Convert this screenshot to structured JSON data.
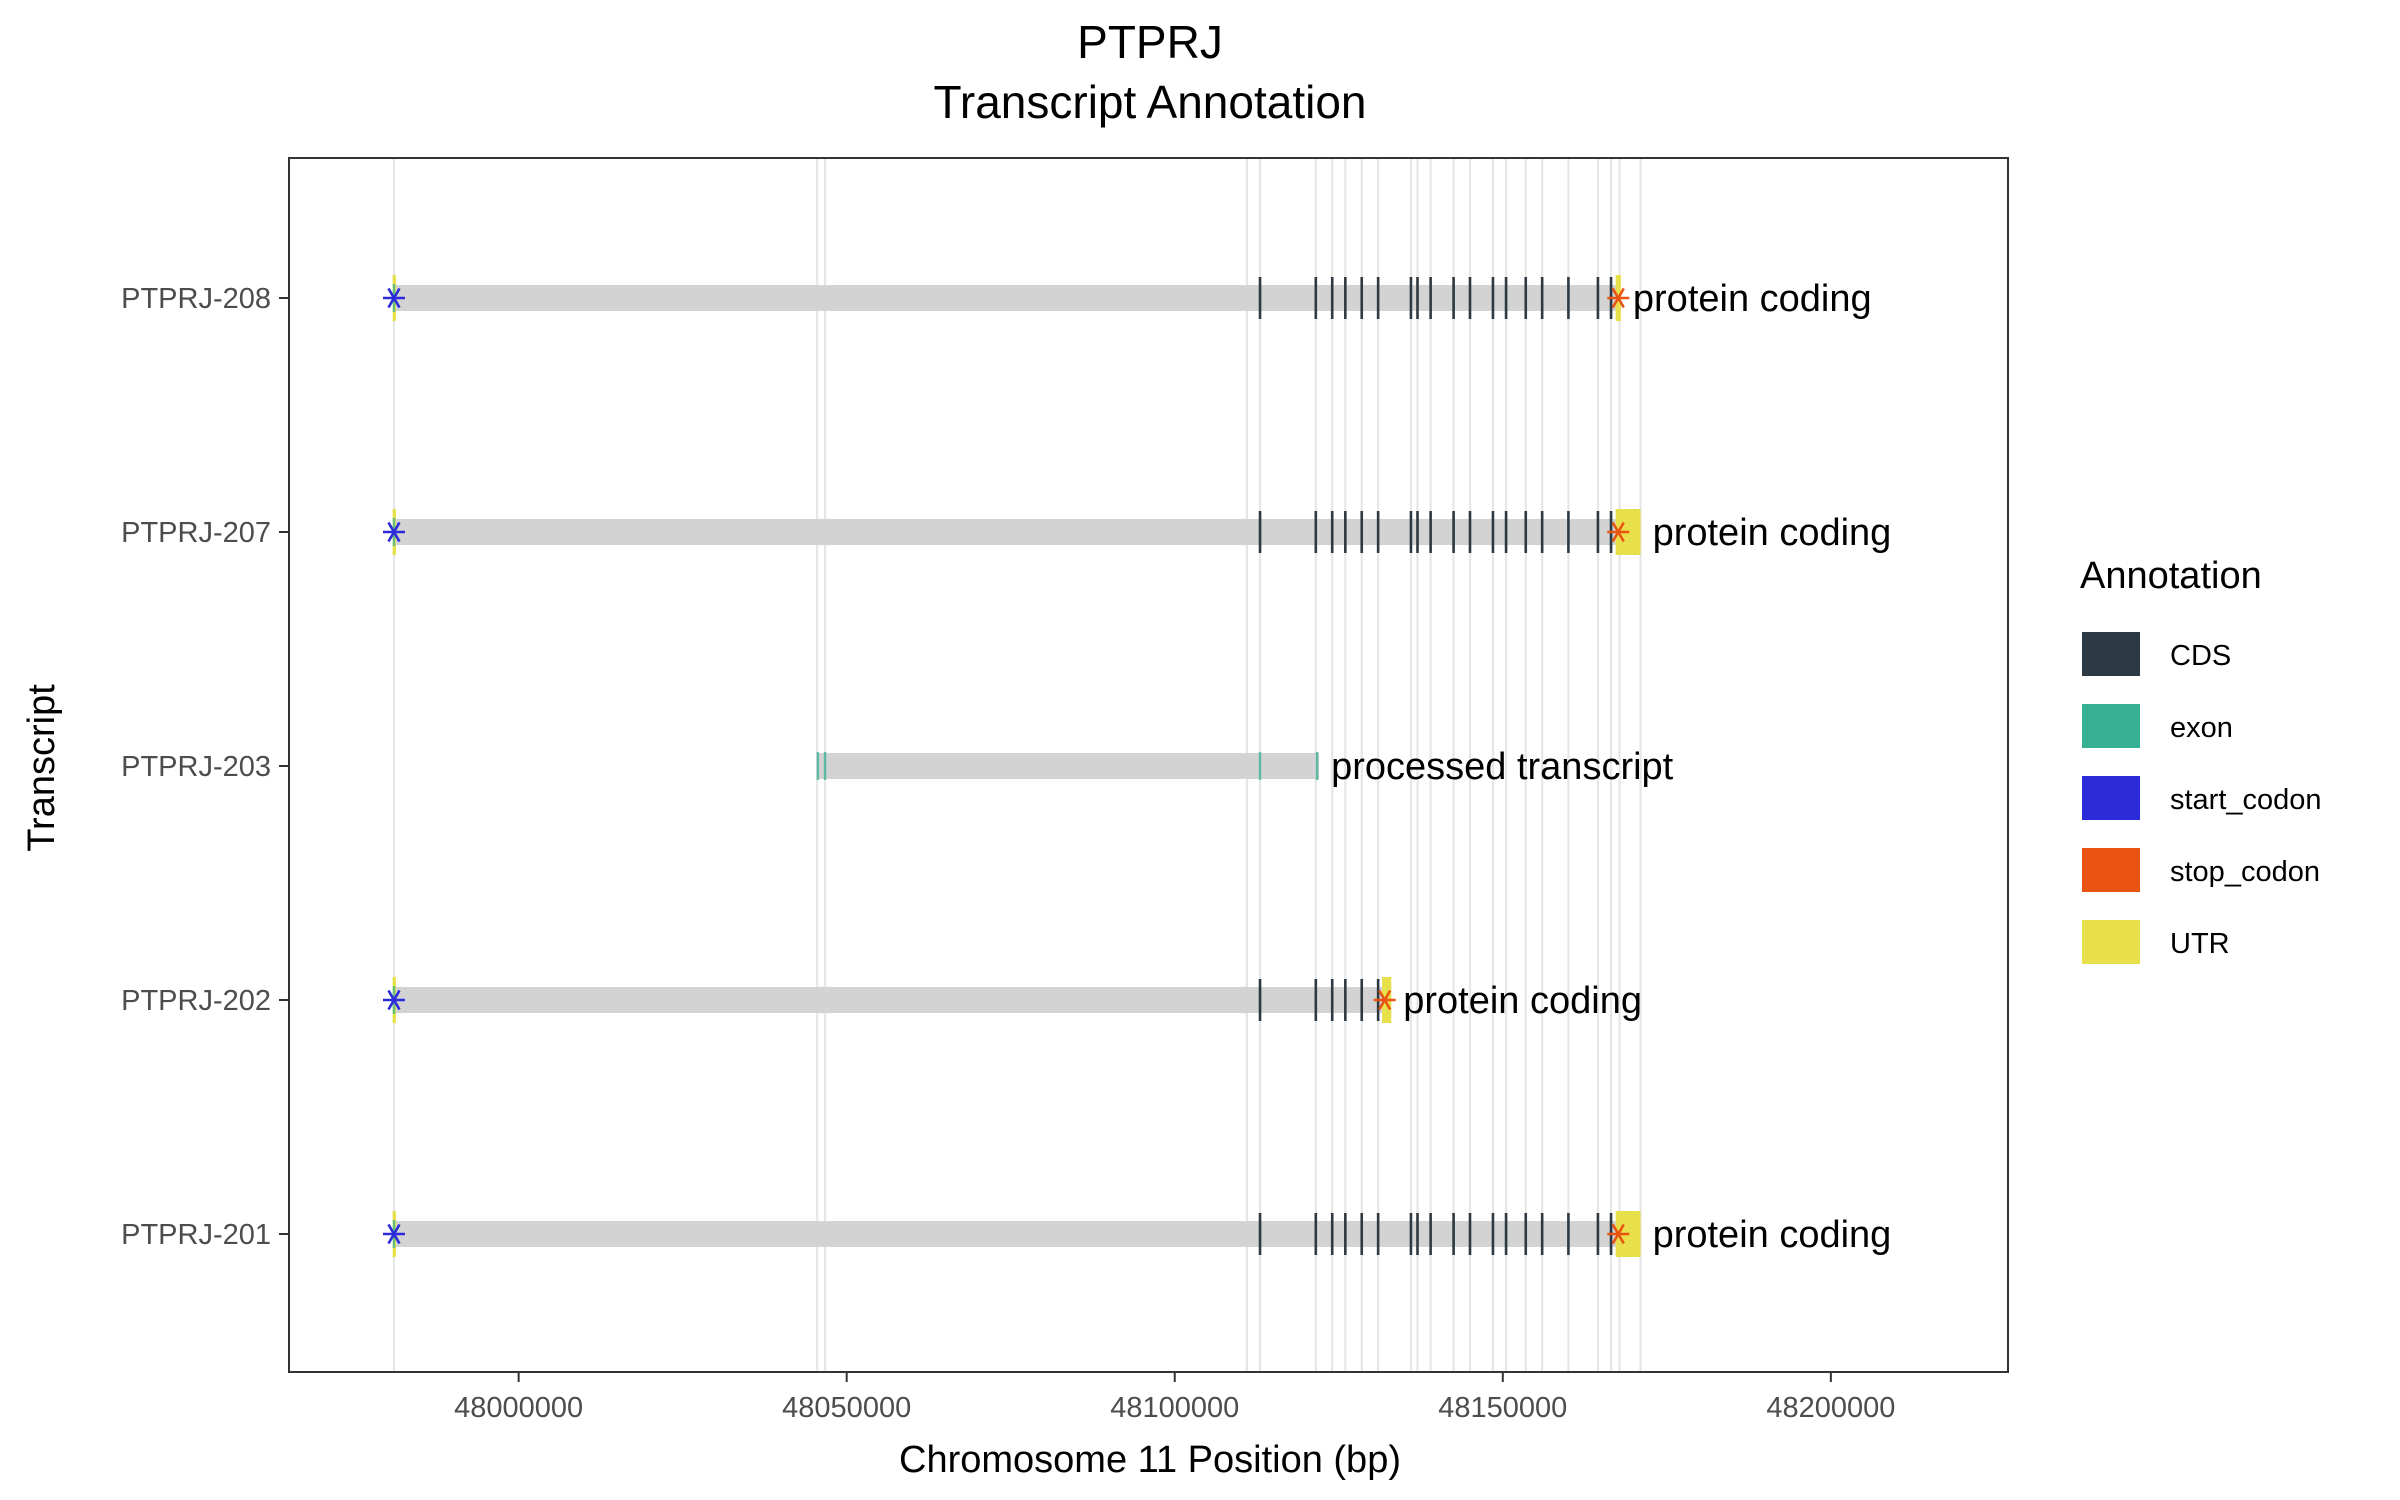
{
  "chart_data": {
    "type": "gene-transcript-plot",
    "title": "PTPRJ",
    "subtitle": "Transcript Annotation",
    "xlabel": "Chromosome 11 Position (bp)",
    "ylabel": "Transcript",
    "xlim": [
      47965000,
      48227000
    ],
    "x_ticks": [
      48000000,
      48050000,
      48100000,
      48150000,
      48200000
    ],
    "x_tick_labels": [
      "48000000",
      "48050000",
      "48100000",
      "48150000",
      "48200000"
    ],
    "legend_title": "Annotation",
    "legend": [
      {
        "name": "CDS",
        "color": "#2e3a43"
      },
      {
        "name": "exon",
        "color": "#36b092"
      },
      {
        "name": "start_codon",
        "color": "#2b2bd9"
      },
      {
        "name": "stop_codon",
        "color": "#ea5412"
      },
      {
        "name": "UTR",
        "color": "#e8e04a"
      }
    ],
    "guide_lines": [
      47981000,
      48045500,
      48046700,
      48111000,
      48113000,
      48121500,
      48124000,
      48126000,
      48128500,
      48131000,
      48136000,
      48137000,
      48139000,
      48142500,
      48145000,
      48148500,
      48150500,
      48153500,
      48156000,
      48160000,
      48164500,
      48166500,
      48167800,
      48171000
    ],
    "transcripts": [
      {
        "name": "PTPRJ-208",
        "biotype": "protein coding",
        "start": 47981000,
        "end": 48168000,
        "cds": [
          48113000,
          48121500,
          48124000,
          48126000,
          48128500,
          48131000,
          48136000,
          48137000,
          48139000,
          48142500,
          48145000,
          48148500,
          48150500,
          48153500,
          48156000,
          48160000,
          48164500,
          48166500
        ],
        "exon": [
          47981000,
          48113000,
          48142500,
          48150500,
          48166500
        ],
        "utr": [
          [
            47980800,
            47981300
          ],
          [
            48167200,
            48168000
          ]
        ],
        "start_codon": 47981000,
        "stop_codon": 48167600
      },
      {
        "name": "PTPRJ-207",
        "biotype": "protein coding",
        "start": 47981000,
        "end": 48171000,
        "cds": [
          48113000,
          48121500,
          48124000,
          48126000,
          48128500,
          48131000,
          48136000,
          48137000,
          48139000,
          48142500,
          48145000,
          48148500,
          48150500,
          48153500,
          48156000,
          48160000,
          48164500,
          48166500
        ],
        "exon": [
          47981000,
          48113000,
          48142500,
          48150500,
          48166500
        ],
        "utr": [
          [
            47980800,
            47981300
          ],
          [
            48167200,
            48171000
          ]
        ],
        "start_codon": 47981000,
        "stop_codon": 48167600
      },
      {
        "name": "PTPRJ-203",
        "biotype": "processed transcript",
        "start": 48045500,
        "end": 48122000,
        "cds": [],
        "exon": [
          48045600,
          48046700,
          48113000,
          48121700
        ],
        "utr": [],
        "start_codon": null,
        "stop_codon": null
      },
      {
        "name": "PTPRJ-202",
        "biotype": "protein coding",
        "start": 47981000,
        "end": 48133000,
        "cds": [
          48113000,
          48121500,
          48124000,
          48126000,
          48128500,
          48131000
        ],
        "exon": [
          47981000,
          48113000
        ],
        "utr": [
          [
            47980800,
            47981300
          ],
          [
            48131600,
            48133000
          ]
        ],
        "start_codon": 47981000,
        "stop_codon": 48132000
      },
      {
        "name": "PTPRJ-201",
        "biotype": "protein coding",
        "start": 47981000,
        "end": 48171000,
        "cds": [
          48113000,
          48121500,
          48124000,
          48126000,
          48128500,
          48131000,
          48136000,
          48137000,
          48139000,
          48142500,
          48145000,
          48148500,
          48150500,
          48153500,
          48156000,
          48160000,
          48164500,
          48166500
        ],
        "exon": [
          47981000,
          48113000,
          48142500,
          48150500,
          48166500
        ],
        "utr": [
          [
            47980800,
            47981300
          ],
          [
            48167200,
            48171000
          ]
        ],
        "start_codon": 47981000,
        "stop_codon": 48167600
      }
    ]
  }
}
